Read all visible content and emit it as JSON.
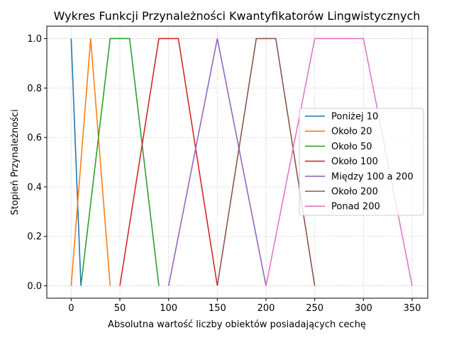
{
  "chart_data": {
    "type": "line",
    "title": "Wykres Funkcji Przynależności Kwantyfikatorów Lingwistycznych",
    "xlabel": "Absolutna wartość liczby obiektów posiadających cechę",
    "ylabel": "Stopień Przynależności",
    "xlim": [
      -25,
      366
    ],
    "ylim": [
      -0.05,
      1.05
    ],
    "xticks": [
      0,
      50,
      100,
      150,
      200,
      250,
      300,
      350
    ],
    "yticks": [
      0.0,
      0.2,
      0.4,
      0.6,
      0.8,
      1.0
    ],
    "xtick_labels": [
      "0",
      "50",
      "100",
      "150",
      "200",
      "250",
      "300",
      "350"
    ],
    "ytick_labels": [
      "0.0",
      "0.2",
      "0.4",
      "0.6",
      "0.8",
      "1.0"
    ],
    "grid": true,
    "legend_position": "center-right",
    "series": [
      {
        "name": "Poniżej 10",
        "color": "#1f77b4",
        "x": [
          0,
          10
        ],
        "y": [
          1,
          0
        ]
      },
      {
        "name": "Około 20",
        "color": "#ff7f0e",
        "x": [
          0,
          20,
          40
        ],
        "y": [
          0,
          1,
          0
        ]
      },
      {
        "name": "Około 50",
        "color": "#2ca02c",
        "x": [
          10,
          40,
          60,
          90
        ],
        "y": [
          0,
          1,
          1,
          0
        ]
      },
      {
        "name": "Około 100",
        "color": "#d62728",
        "x": [
          50,
          90,
          110,
          150
        ],
        "y": [
          0,
          1,
          1,
          0
        ]
      },
      {
        "name": "Między 100 a 200",
        "color": "#9467bd",
        "x": [
          100,
          150,
          200
        ],
        "y": [
          0,
          1,
          0
        ]
      },
      {
        "name": "Około 200",
        "color": "#8c564b",
        "x": [
          150,
          190,
          210,
          250
        ],
        "y": [
          0,
          1,
          1,
          0
        ]
      },
      {
        "name": "Ponad 200",
        "color": "#e377c2",
        "x": [
          200,
          250,
          300,
          350
        ],
        "y": [
          0,
          1,
          1,
          0
        ]
      }
    ]
  }
}
